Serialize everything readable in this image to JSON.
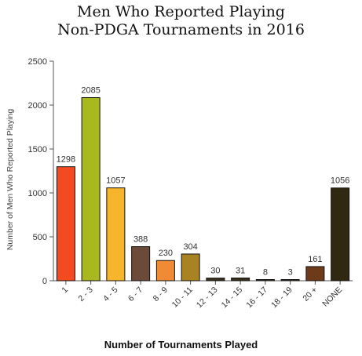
{
  "chart_data": {
    "type": "bar",
    "title_lines": [
      "Men Who Reported Playing",
      "Non-PDGA Tournaments in 2016"
    ],
    "xlabel": "Number of Tournaments Played",
    "ylabel": "Number of Men Who Reported Playing",
    "ylim": [
      0,
      2500
    ],
    "yticks": [
      0,
      500,
      1000,
      1500,
      2000,
      2500
    ],
    "grid": false,
    "categories": [
      "1",
      "2 - 3",
      "4 - 5",
      "6 - 7",
      "8 - 9",
      "10 - 11",
      "12 - 13",
      "14 - 15",
      "16 - 17",
      "18 - 19",
      "20 +",
      "NONE"
    ],
    "values": [
      1298,
      2085,
      1057,
      388,
      230,
      304,
      30,
      31,
      8,
      3,
      161,
      1056
    ],
    "colors": [
      "#f44a1f",
      "#a9b81e",
      "#f6b52a",
      "#6b4a3a",
      "#f08a35",
      "#a98322",
      "#3a2f1c",
      "#3a2f1c",
      "#3a2f1c",
      "#3a2f1c",
      "#6e3b1a",
      "#312812"
    ]
  }
}
